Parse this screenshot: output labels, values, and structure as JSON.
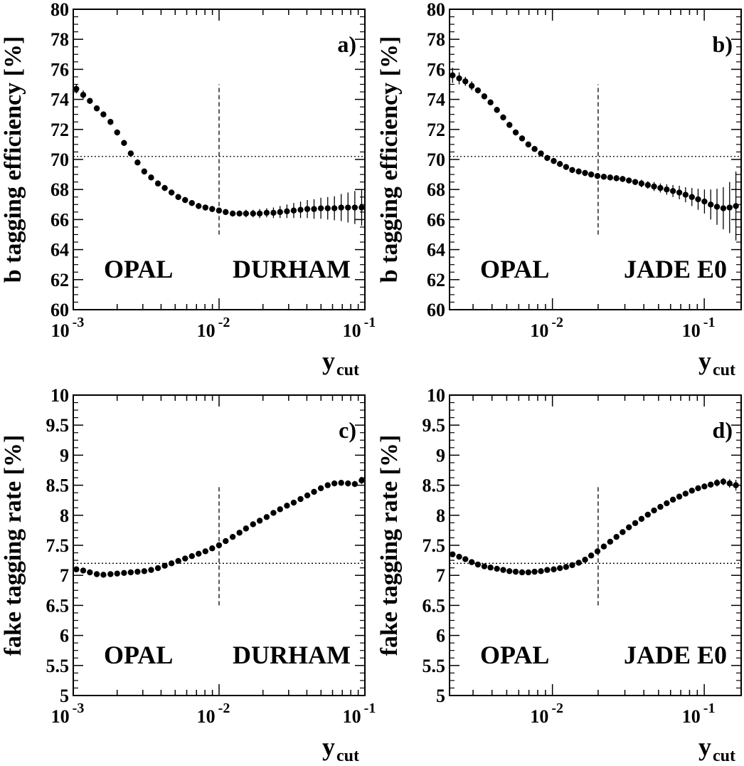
{
  "chart_data": [
    {
      "panel": "a)",
      "type": "scatter",
      "x_scale": "log",
      "xlim": [
        0.001,
        0.1
      ],
      "ylim": [
        60,
        80
      ],
      "ylabel": "b tagging efficiency [%]",
      "xlabel": "y_cut",
      "y_ticks": [
        "60",
        "62",
        "64",
        "66",
        "68",
        "70",
        "72",
        "74",
        "76",
        "78",
        "80"
      ],
      "x_tick_labels": [
        {
          "x": 0.001,
          "base": "10",
          "exp": "-3"
        },
        {
          "x": 0.01,
          "base": "10",
          "exp": "-2"
        },
        {
          "x": 0.1,
          "base": "10",
          "exp": "-1"
        }
      ],
      "text_left": "OPAL",
      "text_right": "DURHAM",
      "hline": 70.2,
      "vline": {
        "x": 0.01,
        "y": [
          65,
          75
        ]
      },
      "series": [
        {
          "x": [
            0.00105,
            0.00117,
            0.0013,
            0.00145,
            0.00161,
            0.0018,
            0.002,
            0.00223,
            0.00248,
            0.00276,
            0.00307,
            0.00342,
            0.00381,
            0.00424,
            0.00472,
            0.00525,
            0.00585,
            0.00651,
            0.00724,
            0.00806,
            0.00897,
            0.00999,
            0.0111,
            0.0124,
            0.0138,
            0.0153,
            0.0171,
            0.019,
            0.0212,
            0.0236,
            0.0262,
            0.0292,
            0.0325,
            0.0362,
            0.0403,
            0.0448,
            0.0499,
            0.0556,
            0.0618,
            0.0688,
            0.0766,
            0.0853,
            0.095
          ],
          "y": [
            74.7,
            74.3,
            73.9,
            73.4,
            73.0,
            72.5,
            71.8,
            71.1,
            70.4,
            69.8,
            69.2,
            68.8,
            68.4,
            68.1,
            67.8,
            67.5,
            67.3,
            67.1,
            66.9,
            66.8,
            66.7,
            66.6,
            66.5,
            66.4,
            66.4,
            66.4,
            66.4,
            66.4,
            66.45,
            66.45,
            66.5,
            66.55,
            66.6,
            66.65,
            66.7,
            66.7,
            66.75,
            66.75,
            66.75,
            66.8,
            66.8,
            66.8,
            66.8
          ],
          "err": [
            0.3,
            0.3,
            0.2,
            0.2,
            0.2,
            0.2,
            0.2,
            0.2,
            0.2,
            0.2,
            0.2,
            0.2,
            0.2,
            0.2,
            0.2,
            0.2,
            0.2,
            0.2,
            0.2,
            0.2,
            0.2,
            0.2,
            0.2,
            0.2,
            0.2,
            0.25,
            0.25,
            0.3,
            0.3,
            0.35,
            0.4,
            0.45,
            0.5,
            0.55,
            0.6,
            0.65,
            0.7,
            0.75,
            0.8,
            0.9,
            1.0,
            1.1,
            1.2
          ]
        }
      ]
    },
    {
      "panel": "b)",
      "type": "scatter",
      "x_scale": "log",
      "xlim": [
        0.0021,
        0.175
      ],
      "ylim": [
        60,
        80
      ],
      "ylabel": "b tagging efficiency [%]",
      "xlabel": "y_cut",
      "y_ticks": [
        "60",
        "62",
        "64",
        "66",
        "68",
        "70",
        "72",
        "74",
        "76",
        "78",
        "80"
      ],
      "x_tick_labels": [
        {
          "x": 0.01,
          "base": "10",
          "exp": "-2"
        },
        {
          "x": 0.1,
          "base": "10",
          "exp": "-1"
        }
      ],
      "text_left": "OPAL",
      "text_right": "JADE E0",
      "hline": 70.2,
      "vline": {
        "x": 0.02,
        "y": [
          65,
          75
        ]
      },
      "series": [
        {
          "x": [
            0.0022,
            0.00243,
            0.00267,
            0.00294,
            0.00323,
            0.00356,
            0.00391,
            0.00431,
            0.00474,
            0.00521,
            0.00573,
            0.00631,
            0.00694,
            0.00763,
            0.0084,
            0.00924,
            0.0102,
            0.0112,
            0.0123,
            0.0135,
            0.0149,
            0.0164,
            0.018,
            0.0198,
            0.0218,
            0.024,
            0.0264,
            0.029,
            0.0319,
            0.0351,
            0.0386,
            0.0425,
            0.0467,
            0.0514,
            0.0566,
            0.0622,
            0.0685,
            0.0753,
            0.0829,
            0.0911,
            0.1003,
            0.1103,
            0.1213,
            0.1335,
            0.1469,
            0.1616
          ],
          "y": [
            75.6,
            75.4,
            75.2,
            74.9,
            74.6,
            74.2,
            73.8,
            73.3,
            72.8,
            72.3,
            71.8,
            71.4,
            71.0,
            70.7,
            70.4,
            70.1,
            69.9,
            69.7,
            69.5,
            69.3,
            69.2,
            69.1,
            69.0,
            68.9,
            68.85,
            68.8,
            68.75,
            68.7,
            68.6,
            68.5,
            68.4,
            68.3,
            68.2,
            68.1,
            68.0,
            67.9,
            67.8,
            67.65,
            67.5,
            67.35,
            67.2,
            67.0,
            66.85,
            66.75,
            66.8,
            66.9
          ],
          "err": [
            0.5,
            0.4,
            0.3,
            0.3,
            0.2,
            0.2,
            0.2,
            0.2,
            0.2,
            0.2,
            0.2,
            0.2,
            0.2,
            0.2,
            0.2,
            0.2,
            0.2,
            0.2,
            0.2,
            0.2,
            0.2,
            0.2,
            0.2,
            0.2,
            0.2,
            0.2,
            0.2,
            0.2,
            0.2,
            0.2,
            0.25,
            0.25,
            0.3,
            0.3,
            0.35,
            0.4,
            0.45,
            0.5,
            0.6,
            0.7,
            0.8,
            1.0,
            1.2,
            1.4,
            1.7,
            2.3
          ]
        }
      ]
    },
    {
      "panel": "c)",
      "type": "scatter",
      "x_scale": "log",
      "xlim": [
        0.001,
        0.1
      ],
      "ylim": [
        5,
        10
      ],
      "ylabel": "fake tagging rate [%]",
      "xlabel": "y_cut",
      "y_ticks": [
        "5",
        "5.5",
        "6",
        "6.5",
        "7",
        "7.5",
        "8",
        "8.5",
        "9",
        "9.5",
        "10"
      ],
      "x_tick_labels": [
        {
          "x": 0.001,
          "base": "10",
          "exp": "-3"
        },
        {
          "x": 0.01,
          "base": "10",
          "exp": "-2"
        },
        {
          "x": 0.1,
          "base": "10",
          "exp": "-1"
        }
      ],
      "text_left": "OPAL",
      "text_right": "DURHAM",
      "hline": 7.2,
      "vline": {
        "x": 0.01,
        "y": [
          6.5,
          8.5
        ]
      },
      "series": [
        {
          "x": [
            0.00105,
            0.00117,
            0.0013,
            0.00145,
            0.00161,
            0.0018,
            0.002,
            0.00223,
            0.00248,
            0.00276,
            0.00307,
            0.00342,
            0.00381,
            0.00424,
            0.00472,
            0.00525,
            0.00585,
            0.00651,
            0.00724,
            0.00806,
            0.00897,
            0.00999,
            0.0111,
            0.0124,
            0.0138,
            0.0153,
            0.0171,
            0.019,
            0.0212,
            0.0236,
            0.0262,
            0.0292,
            0.0325,
            0.0362,
            0.0403,
            0.0448,
            0.0499,
            0.0556,
            0.0618,
            0.0688,
            0.0766,
            0.0853,
            0.095
          ],
          "y": [
            7.1,
            7.08,
            7.05,
            7.02,
            7.01,
            7.02,
            7.03,
            7.04,
            7.05,
            7.06,
            7.07,
            7.09,
            7.12,
            7.16,
            7.2,
            7.24,
            7.28,
            7.32,
            7.36,
            7.4,
            7.45,
            7.5,
            7.57,
            7.64,
            7.71,
            7.78,
            7.85,
            7.91,
            7.97,
            8.04,
            8.1,
            8.16,
            8.21,
            8.27,
            8.33,
            8.39,
            8.45,
            8.5,
            8.53,
            8.54,
            8.53,
            8.52,
            8.58
          ],
          "err": [
            0.03,
            0.03,
            0.03,
            0.03,
            0.03,
            0.03,
            0.03,
            0.03,
            0.03,
            0.03,
            0.03,
            0.03,
            0.03,
            0.03,
            0.03,
            0.03,
            0.03,
            0.03,
            0.03,
            0.03,
            0.03,
            0.03,
            0.03,
            0.03,
            0.03,
            0.03,
            0.03,
            0.03,
            0.03,
            0.03,
            0.03,
            0.03,
            0.03,
            0.04,
            0.04,
            0.04,
            0.04,
            0.04,
            0.04,
            0.05,
            0.05,
            0.05,
            0.06
          ]
        }
      ]
    },
    {
      "panel": "d)",
      "type": "scatter",
      "x_scale": "log",
      "xlim": [
        0.0021,
        0.175
      ],
      "ylim": [
        5,
        10
      ],
      "ylabel": "fake tagging rate [%]",
      "xlabel": "y_cut",
      "y_ticks": [
        "5",
        "5.5",
        "6",
        "6.5",
        "7",
        "7.5",
        "8",
        "8.5",
        "9",
        "9.5",
        "10"
      ],
      "x_tick_labels": [
        {
          "x": 0.01,
          "base": "10",
          "exp": "-2"
        },
        {
          "x": 0.1,
          "base": "10",
          "exp": "-1"
        }
      ],
      "text_left": "OPAL",
      "text_right": "JADE E0",
      "hline": 7.2,
      "vline": {
        "x": 0.02,
        "y": [
          6.5,
          8.5
        ]
      },
      "series": [
        {
          "x": [
            0.0022,
            0.00243,
            0.00267,
            0.00294,
            0.00323,
            0.00356,
            0.00391,
            0.00431,
            0.00474,
            0.00521,
            0.00573,
            0.00631,
            0.00694,
            0.00763,
            0.0084,
            0.00924,
            0.0102,
            0.0112,
            0.0123,
            0.0135,
            0.0149,
            0.0164,
            0.018,
            0.0198,
            0.0218,
            0.024,
            0.0264,
            0.029,
            0.0319,
            0.0351,
            0.0386,
            0.0425,
            0.0467,
            0.0514,
            0.0566,
            0.0622,
            0.0685,
            0.0753,
            0.0829,
            0.0911,
            0.1003,
            0.1103,
            0.1213,
            0.1335,
            0.1469,
            0.1616
          ],
          "y": [
            7.35,
            7.31,
            7.27,
            7.22,
            7.18,
            7.15,
            7.13,
            7.11,
            7.09,
            7.07,
            7.06,
            7.05,
            7.05,
            7.06,
            7.07,
            7.09,
            7.1,
            7.12,
            7.14,
            7.17,
            7.21,
            7.26,
            7.33,
            7.4,
            7.48,
            7.56,
            7.64,
            7.72,
            7.8,
            7.87,
            7.94,
            8.01,
            8.08,
            8.14,
            8.2,
            8.26,
            8.31,
            8.36,
            8.41,
            8.45,
            8.48,
            8.51,
            8.54,
            8.56,
            8.53,
            8.5
          ],
          "err": [
            0.03,
            0.03,
            0.03,
            0.03,
            0.03,
            0.03,
            0.03,
            0.03,
            0.03,
            0.03,
            0.03,
            0.03,
            0.03,
            0.03,
            0.03,
            0.03,
            0.03,
            0.03,
            0.03,
            0.03,
            0.03,
            0.03,
            0.03,
            0.03,
            0.03,
            0.03,
            0.03,
            0.03,
            0.03,
            0.03,
            0.03,
            0.03,
            0.03,
            0.03,
            0.03,
            0.04,
            0.04,
            0.04,
            0.04,
            0.04,
            0.05,
            0.05,
            0.06,
            0.06,
            0.07,
            0.09
          ]
        }
      ]
    }
  ]
}
